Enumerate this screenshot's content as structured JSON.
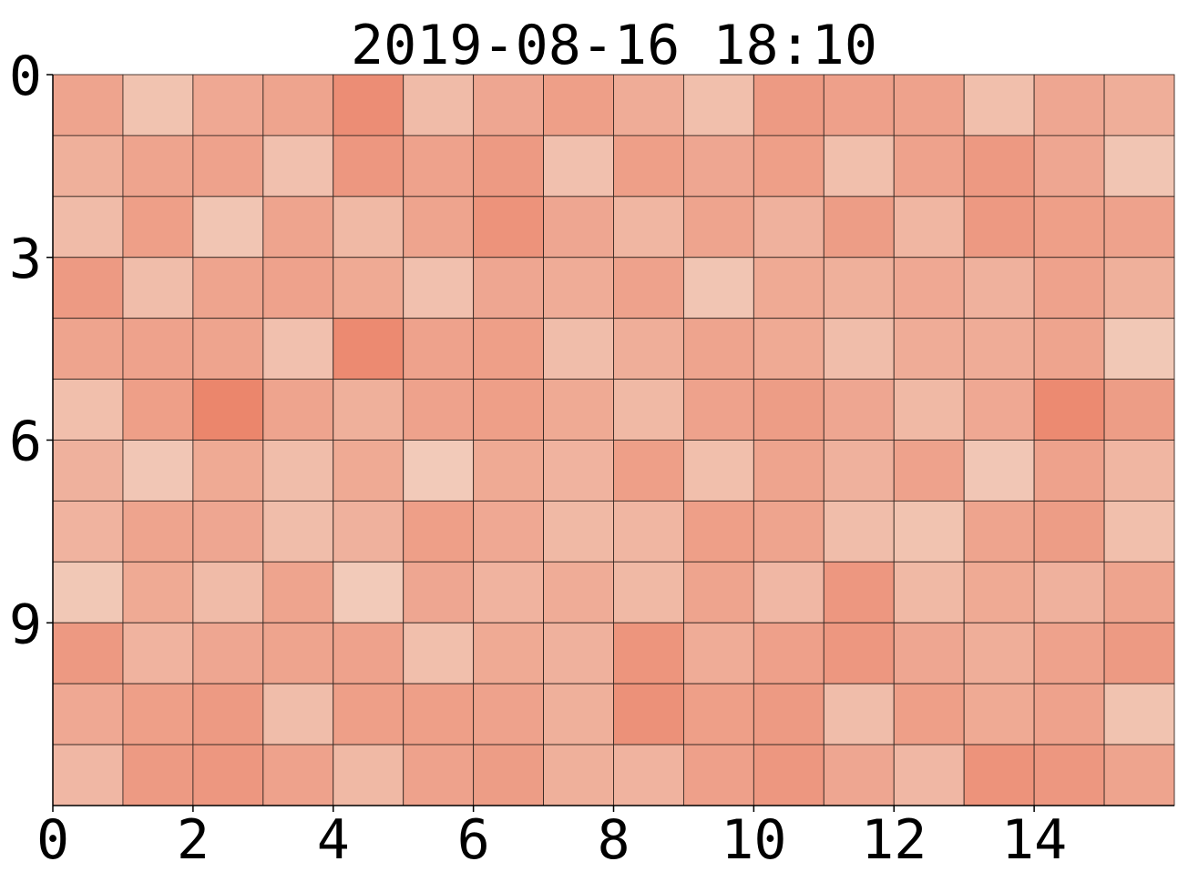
{
  "chart_data": {
    "type": "heatmap",
    "title": "2019-08-16 18:10",
    "xlabel": "",
    "ylabel": "",
    "n_cols": 16,
    "n_rows": 12,
    "xlim": [
      0,
      16
    ],
    "ylim": [
      12,
      0
    ],
    "x_ticks": [
      0,
      2,
      4,
      6,
      8,
      10,
      12,
      14
    ],
    "y_ticks": [
      0,
      3,
      6,
      9
    ],
    "grid": true,
    "colormap": {
      "low": "#f2cebd",
      "high": "#eb8268"
    },
    "cell_edge_color": "#3a2a24",
    "values": [
      [
        0.55,
        0.15,
        0.5,
        0.55,
        0.85,
        0.25,
        0.52,
        0.62,
        0.45,
        0.2,
        0.68,
        0.6,
        0.58,
        0.2,
        0.52,
        0.42
      ],
      [
        0.4,
        0.55,
        0.58,
        0.18,
        0.72,
        0.58,
        0.68,
        0.18,
        0.62,
        0.52,
        0.62,
        0.2,
        0.58,
        0.7,
        0.52,
        0.12
      ],
      [
        0.25,
        0.62,
        0.12,
        0.55,
        0.28,
        0.55,
        0.78,
        0.52,
        0.32,
        0.55,
        0.38,
        0.65,
        0.32,
        0.7,
        0.62,
        0.58
      ],
      [
        0.68,
        0.22,
        0.55,
        0.58,
        0.48,
        0.18,
        0.52,
        0.45,
        0.58,
        0.12,
        0.48,
        0.4,
        0.5,
        0.38,
        0.58,
        0.4
      ],
      [
        0.55,
        0.58,
        0.55,
        0.18,
        0.9,
        0.58,
        0.62,
        0.22,
        0.42,
        0.55,
        0.48,
        0.22,
        0.45,
        0.45,
        0.55,
        0.08
      ],
      [
        0.2,
        0.62,
        0.95,
        0.55,
        0.4,
        0.58,
        0.62,
        0.48,
        0.28,
        0.58,
        0.65,
        0.52,
        0.28,
        0.5,
        0.9,
        0.65
      ],
      [
        0.38,
        0.1,
        0.48,
        0.22,
        0.48,
        0.05,
        0.48,
        0.35,
        0.62,
        0.2,
        0.55,
        0.38,
        0.58,
        0.1,
        0.58,
        0.32
      ],
      [
        0.35,
        0.55,
        0.52,
        0.22,
        0.38,
        0.62,
        0.5,
        0.28,
        0.32,
        0.62,
        0.55,
        0.22,
        0.15,
        0.55,
        0.65,
        0.2
      ],
      [
        0.08,
        0.48,
        0.25,
        0.55,
        0.05,
        0.52,
        0.35,
        0.45,
        0.28,
        0.55,
        0.3,
        0.72,
        0.28,
        0.48,
        0.38,
        0.55
      ],
      [
        0.7,
        0.35,
        0.52,
        0.55,
        0.58,
        0.2,
        0.48,
        0.38,
        0.75,
        0.45,
        0.6,
        0.72,
        0.52,
        0.42,
        0.58,
        0.68
      ],
      [
        0.5,
        0.62,
        0.68,
        0.22,
        0.62,
        0.62,
        0.58,
        0.4,
        0.8,
        0.62,
        0.68,
        0.22,
        0.62,
        0.48,
        0.58,
        0.15
      ],
      [
        0.3,
        0.68,
        0.72,
        0.58,
        0.28,
        0.58,
        0.65,
        0.4,
        0.35,
        0.6,
        0.72,
        0.52,
        0.3,
        0.78,
        0.72,
        0.55
      ]
    ]
  }
}
